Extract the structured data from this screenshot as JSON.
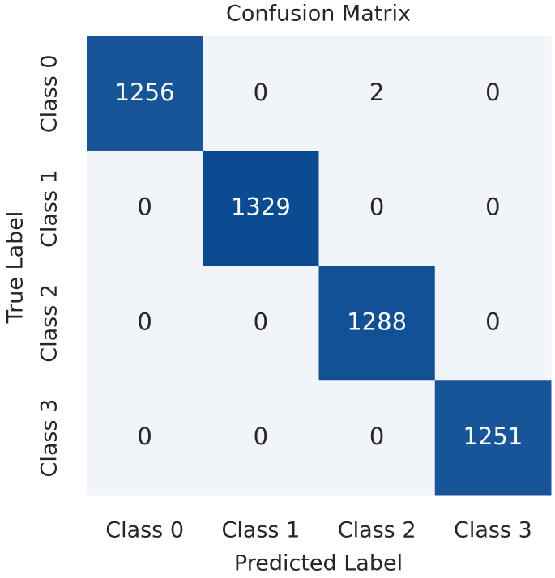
{
  "chart_data": {
    "type": "heatmap",
    "title": "Confusion Matrix",
    "x_label": "Predicted Label",
    "y_label": "True Label",
    "x_categories": [
      "Class 0",
      "Class 1",
      "Class 2",
      "Class 3"
    ],
    "y_categories": [
      "Class 0",
      "Class 1",
      "Class 2",
      "Class 3"
    ],
    "values": [
      [
        1256,
        0,
        2,
        0
      ],
      [
        0,
        1329,
        0,
        0
      ],
      [
        0,
        0,
        1288,
        0
      ],
      [
        0,
        0,
        0,
        1251
      ]
    ],
    "color_low": "#f1f4f9",
    "color_high": "#0b4b92"
  }
}
